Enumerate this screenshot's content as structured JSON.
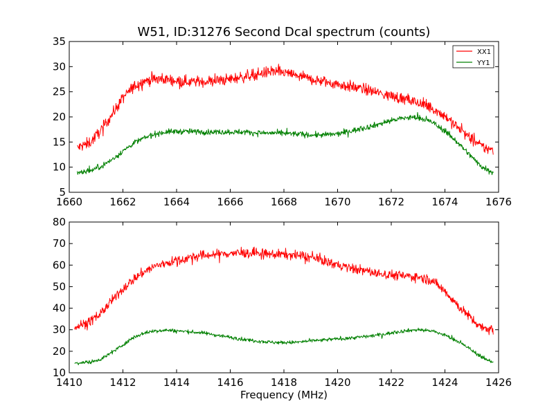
{
  "chart_data": [
    {
      "type": "line",
      "title": "W51, ID:31276 Second Dcal spectrum (counts)",
      "xlabel": "",
      "ylabel": "",
      "xlim": [
        1660,
        1676
      ],
      "ylim": [
        5,
        35
      ],
      "xticks": [
        1660,
        1662,
        1664,
        1666,
        1668,
        1670,
        1672,
        1674,
        1676
      ],
      "yticks": [
        5,
        10,
        15,
        20,
        25,
        30,
        35
      ],
      "x_range": [
        1660.3,
        1675.8
      ],
      "legend": {
        "placement": "top-right",
        "entries": [
          "XX1",
          "YY1"
        ]
      },
      "series": [
        {
          "name": "XX1",
          "color": "#ff0000",
          "x": [
            1660.3,
            1660.8,
            1661.2,
            1661.6,
            1662.0,
            1662.4,
            1662.8,
            1663.2,
            1663.6,
            1664.0,
            1664.5,
            1665.0,
            1665.5,
            1666.0,
            1666.5,
            1667.0,
            1667.5,
            1668.0,
            1668.5,
            1669.0,
            1669.5,
            1670.0,
            1670.5,
            1671.0,
            1671.5,
            1672.0,
            1672.5,
            1673.0,
            1673.5,
            1674.0,
            1674.5,
            1675.0,
            1675.4,
            1675.8
          ],
          "values": [
            13.8,
            15.0,
            17.5,
            20.5,
            23.8,
            26.0,
            27.2,
            27.5,
            27.5,
            27.2,
            27.0,
            27.0,
            27.2,
            27.5,
            28.0,
            28.5,
            29.0,
            28.8,
            28.2,
            27.5,
            27.0,
            26.5,
            26.0,
            25.5,
            24.8,
            24.2,
            23.5,
            22.8,
            21.8,
            20.2,
            17.8,
            15.5,
            14.0,
            13.3
          ],
          "noise": 0.8
        },
        {
          "name": "YY1",
          "color": "#008000",
          "x": [
            1660.3,
            1660.8,
            1661.2,
            1661.6,
            1662.0,
            1662.4,
            1662.8,
            1663.2,
            1663.6,
            1664.0,
            1664.5,
            1665.0,
            1665.5,
            1666.0,
            1666.5,
            1667.0,
            1667.5,
            1668.0,
            1668.5,
            1669.0,
            1669.5,
            1670.0,
            1670.5,
            1671.0,
            1671.5,
            1672.0,
            1672.5,
            1673.0,
            1673.5,
            1674.0,
            1674.5,
            1675.0,
            1675.4,
            1675.8
          ],
          "values": [
            9.0,
            9.3,
            10.2,
            11.5,
            13.2,
            14.8,
            15.8,
            16.6,
            17.0,
            17.1,
            17.1,
            17.0,
            17.0,
            17.0,
            17.0,
            16.8,
            16.8,
            16.7,
            16.6,
            16.4,
            16.4,
            16.6,
            17.2,
            17.8,
            18.5,
            19.3,
            19.8,
            19.9,
            19.0,
            17.2,
            14.8,
            12.0,
            10.0,
            9.0
          ],
          "noise": 0.4
        }
      ]
    },
    {
      "type": "line",
      "title": "",
      "xlabel": "Frequency (MHz)",
      "ylabel": "",
      "xlim": [
        1410,
        1426
      ],
      "ylim": [
        10,
        80
      ],
      "xticks": [
        1410,
        1412,
        1414,
        1416,
        1418,
        1420,
        1422,
        1424,
        1426
      ],
      "yticks": [
        10,
        20,
        30,
        40,
        50,
        60,
        70,
        80
      ],
      "x_range": [
        1410.2,
        1425.8
      ],
      "series": [
        {
          "name": "XX1",
          "color": "#ff0000",
          "x": [
            1410.2,
            1410.8,
            1411.2,
            1411.6,
            1412.0,
            1412.4,
            1412.8,
            1413.2,
            1413.6,
            1414.0,
            1414.5,
            1415.0,
            1415.5,
            1416.0,
            1416.5,
            1417.0,
            1417.5,
            1418.0,
            1418.5,
            1419.0,
            1419.5,
            1420.0,
            1420.5,
            1421.0,
            1421.5,
            1422.0,
            1422.5,
            1423.0,
            1423.5,
            1424.0,
            1424.5,
            1425.0,
            1425.4,
            1425.8
          ],
          "values": [
            31.0,
            34.0,
            38.0,
            43.5,
            49.0,
            53.5,
            57.0,
            59.5,
            61.0,
            62.0,
            63.5,
            64.5,
            65.0,
            65.5,
            65.5,
            65.5,
            65.0,
            65.0,
            64.5,
            63.5,
            62.0,
            60.0,
            58.5,
            57.5,
            56.0,
            55.5,
            55.0,
            54.5,
            53.0,
            48.0,
            41.0,
            35.0,
            31.0,
            30.0
          ],
          "noise": 1.6
        },
        {
          "name": "YY1",
          "color": "#008000",
          "x": [
            1410.2,
            1410.8,
            1411.2,
            1411.6,
            1412.0,
            1412.4,
            1412.8,
            1413.2,
            1413.6,
            1414.0,
            1414.5,
            1415.0,
            1415.5,
            1416.0,
            1416.5,
            1417.0,
            1417.5,
            1418.0,
            1418.5,
            1419.0,
            1419.5,
            1420.0,
            1420.5,
            1421.0,
            1421.5,
            1422.0,
            1422.5,
            1423.0,
            1423.5,
            1424.0,
            1424.5,
            1425.0,
            1425.4,
            1425.8
          ],
          "values": [
            14.5,
            15.0,
            16.5,
            19.5,
            23.0,
            26.5,
            28.5,
            29.5,
            29.8,
            29.5,
            29.0,
            28.5,
            27.5,
            26.5,
            25.5,
            24.8,
            24.2,
            24.0,
            24.2,
            24.8,
            25.2,
            25.8,
            26.2,
            26.8,
            27.5,
            28.5,
            29.5,
            30.0,
            29.5,
            27.5,
            24.5,
            20.5,
            17.0,
            15.0
          ],
          "noise": 0.6
        }
      ]
    }
  ]
}
